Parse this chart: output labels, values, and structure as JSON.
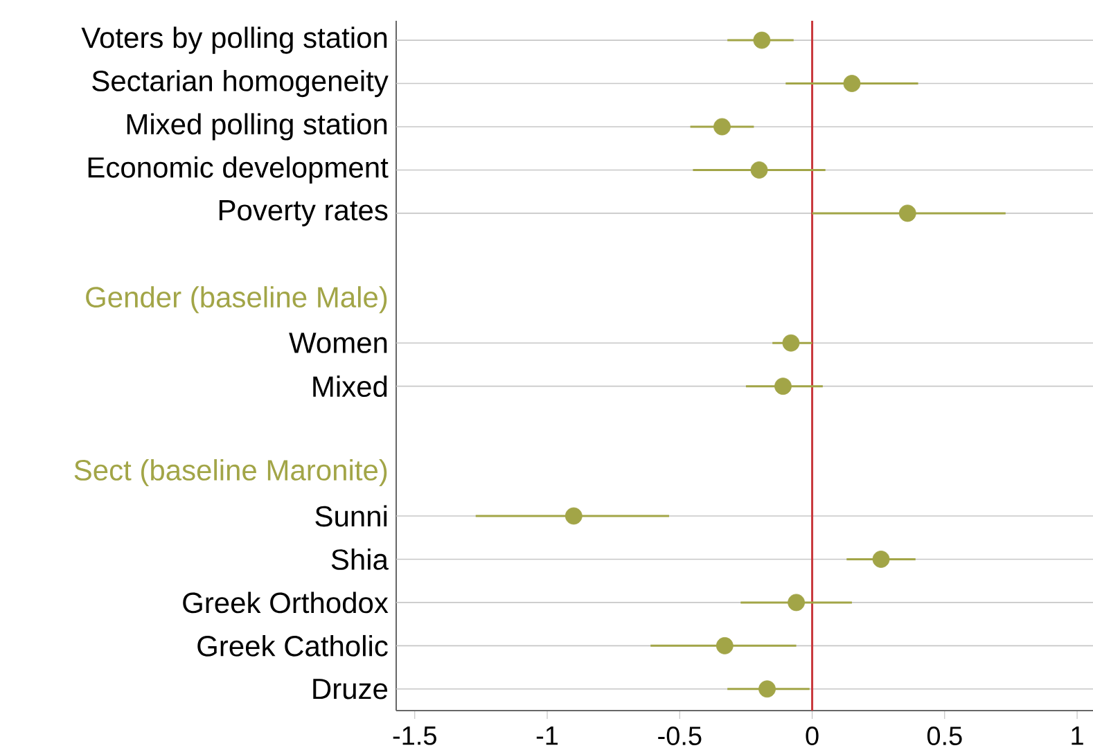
{
  "chart_data": {
    "type": "scatter",
    "orientation": "horizontal",
    "categories": [
      "Voters by polling station",
      "Sectarian homogeneity",
      "Mixed polling station",
      "Economic development",
      "Poverty rates",
      null,
      "Gender (baseline Male)",
      "Women",
      "Mixed",
      null,
      "Sect (baseline Maronite)",
      "Sunni",
      "Shia",
      "Greek Orthodox",
      "Greek Catholic",
      "Druze"
    ],
    "series": [
      {
        "color": "#a2a547",
        "values": [
          -0.19,
          0.15,
          -0.34,
          -0.2,
          0.36,
          null,
          null,
          -0.08,
          -0.11,
          null,
          null,
          -0.9,
          0.26,
          -0.06,
          -0.33,
          -0.17
        ],
        "errors": [
          [
            -0.32,
            -0.07
          ],
          [
            -0.1,
            0.4
          ],
          [
            -0.46,
            -0.22
          ],
          [
            -0.45,
            0.05
          ],
          [
            0.0,
            0.73
          ],
          null,
          null,
          [
            -0.15,
            0.0
          ],
          [
            -0.25,
            0.04
          ],
          null,
          null,
          [
            -1.27,
            -0.54
          ],
          [
            0.13,
            0.39
          ],
          [
            -0.27,
            0.15
          ],
          [
            -0.61,
            -0.06
          ],
          [
            -0.32,
            -0.01
          ]
        ]
      }
    ],
    "xlim": [
      -1.57,
      1.06
    ],
    "xticks": [
      -1.5,
      -1,
      -0.5,
      0,
      0.5,
      1
    ],
    "ref_lines": [
      {
        "axis": "x",
        "value": 0,
        "color": "#c8383c"
      }
    ],
    "grid": "y",
    "marker": "circle"
  }
}
